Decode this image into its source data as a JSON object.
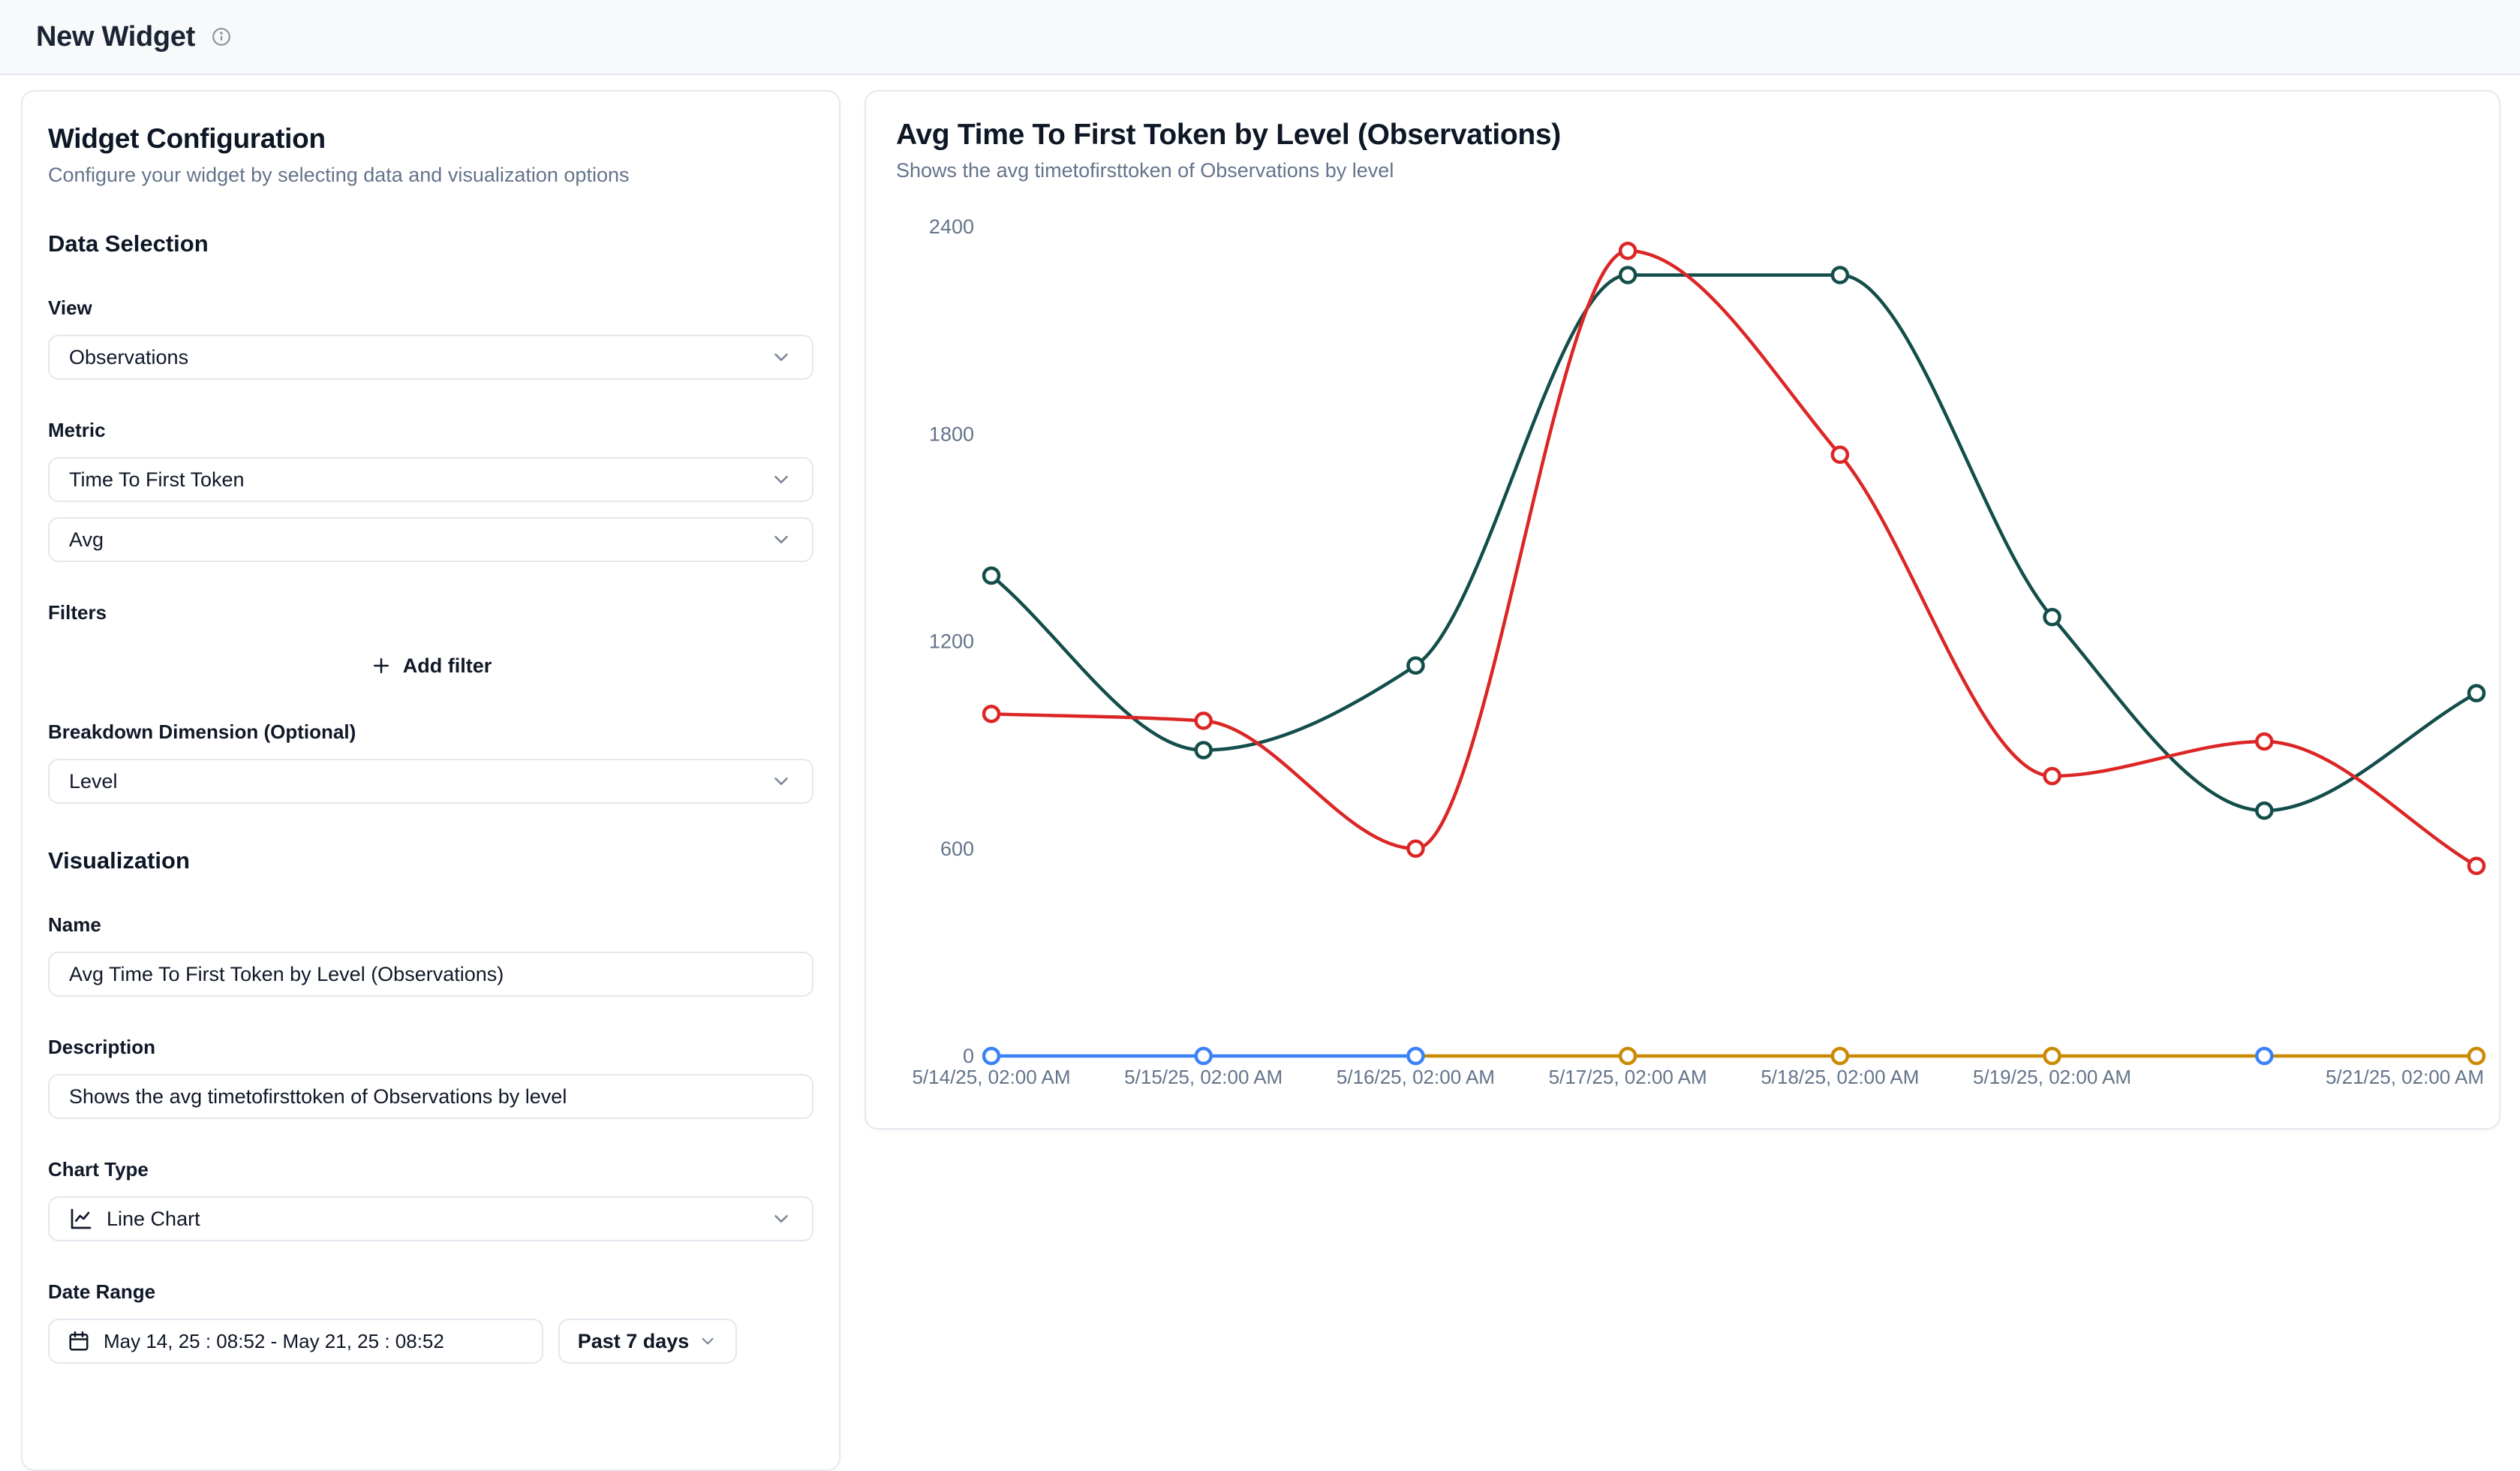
{
  "header": {
    "title": "New Widget"
  },
  "config_panel": {
    "title": "Widget Configuration",
    "subtitle": "Configure your widget by selecting data and visualization options",
    "section_data": "Data Selection",
    "section_viz": "Visualization",
    "view": {
      "label": "View",
      "value": "Observations"
    },
    "metric": {
      "label": "Metric",
      "value": "Time To First Token",
      "aggregation": "Avg"
    },
    "filters": {
      "label": "Filters",
      "add_button": "Add filter"
    },
    "breakdown": {
      "label": "Breakdown Dimension (Optional)",
      "value": "Level"
    },
    "name": {
      "label": "Name",
      "value": "Avg Time To First Token by Level (Observations)"
    },
    "description": {
      "label": "Description",
      "value": "Shows the avg timetofirsttoken of Observations by level"
    },
    "chart_type": {
      "label": "Chart Type",
      "value": "Line Chart"
    },
    "date_range": {
      "label": "Date Range",
      "value": "May 14, 25 : 08:52 - May 21, 25 : 08:52",
      "preset": "Past 7 days"
    }
  },
  "widget_preview": {
    "title": "Avg Time To First Token by Level (Observations)",
    "subtitle": "Shows the avg timetofirsttoken of Observations by level"
  },
  "chart_data": {
    "type": "line",
    "title": "Avg Time To First Token by Level (Observations)",
    "xlabel": "",
    "ylabel": "",
    "x_labels": [
      "5/14/25, 02:00 AM",
      "5/15/25, 02:00 AM",
      "5/16/25, 02:00 AM",
      "5/17/25, 02:00 AM",
      "5/18/25, 02:00 AM",
      "5/19/25, 02:00 AM",
      "",
      "5/21/25, 02:00 AM"
    ],
    "y_ticks": [
      0,
      600,
      1200,
      1800,
      2400
    ],
    "ylim": [
      0,
      2400
    ],
    "grid": false,
    "legend": "none",
    "interpolation": "monotone",
    "series": [
      {
        "name": "series-teal",
        "color": "#134e4a",
        "values": [
          1390,
          885,
          1130,
          2260,
          2260,
          1270,
          710,
          1050
        ],
        "marker_indices": [
          0,
          1,
          2,
          3,
          4,
          5,
          6,
          7
        ]
      },
      {
        "name": "series-red",
        "color": "#dc2626",
        "values": [
          990,
          970,
          600,
          2330,
          1740,
          810,
          910,
          550
        ],
        "marker_indices": [
          0,
          1,
          2,
          3,
          4,
          5,
          6,
          7
        ]
      },
      {
        "name": "series-blue",
        "color": "#3b82f6",
        "values": [
          0,
          0,
          0,
          null,
          null,
          null,
          0,
          null
        ],
        "marker_indices": [
          0,
          1,
          2,
          6
        ]
      },
      {
        "name": "series-orange",
        "color": "#ca8a04",
        "values": [
          null,
          null,
          0,
          0,
          0,
          0,
          0,
          0
        ],
        "marker_indices": [
          3,
          4,
          5,
          7
        ]
      }
    ],
    "line_draw_order": [
      2,
      3,
      0,
      1
    ],
    "marker_draw_order": [
      3,
      2,
      0,
      1
    ]
  }
}
